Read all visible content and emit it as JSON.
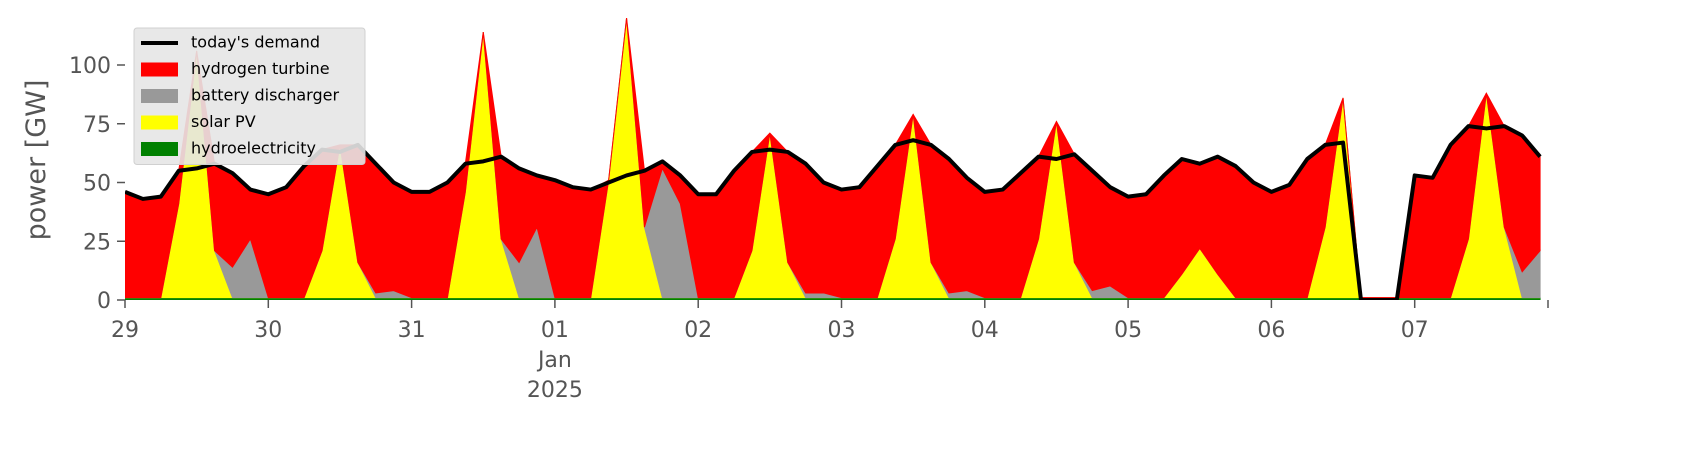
{
  "chart_data": {
    "type": "area",
    "y_label": "power [GW]",
    "ylim": [
      0,
      120
    ],
    "yticks": [
      0,
      25,
      50,
      75,
      100
    ],
    "grid": false,
    "legend": "upper left",
    "categories": [
      "29",
      null,
      null,
      null,
      null,
      null,
      null,
      null,
      "30",
      null,
      null,
      null,
      null,
      null,
      null,
      null,
      "31",
      null,
      null,
      null,
      null,
      null,
      null,
      null,
      "01\nJan\n2025",
      null,
      null,
      null,
      null,
      null,
      null,
      null,
      "02",
      null,
      null,
      null,
      null,
      null,
      null,
      null,
      "03",
      null,
      null,
      null,
      null,
      null,
      null,
      null,
      "04",
      null,
      null,
      null,
      null,
      null,
      null,
      null,
      "05",
      null,
      null,
      null,
      null,
      null,
      null,
      null,
      "06",
      null,
      null,
      null,
      null,
      null,
      null,
      null,
      "07",
      null,
      null,
      null,
      null,
      null,
      null,
      null
    ],
    "series": [
      {
        "name": "today's demand",
        "color": "#000000",
        "type": "line",
        "values": [
          46,
          43,
          44,
          55,
          56,
          58,
          54,
          47,
          45,
          48,
          57,
          64,
          63,
          66,
          58,
          50,
          46,
          46,
          50,
          58,
          59,
          61,
          56,
          53,
          51,
          48,
          47,
          50,
          53,
          55,
          59,
          53,
          45,
          45,
          55,
          63,
          64,
          63,
          58,
          50,
          47,
          48,
          57,
          66,
          68,
          66,
          60,
          52,
          46,
          47,
          54,
          61,
          60,
          62,
          55,
          48,
          44,
          45,
          53,
          60,
          58,
          61,
          57,
          50,
          46,
          49,
          60,
          66,
          67,
          0,
          0,
          0,
          53,
          52,
          66,
          74,
          73,
          74,
          70,
          61
        ]
      },
      {
        "name": "hydrogen turbine",
        "color": "#ff0000",
        "type": "area",
        "values": [
          45,
          42,
          43,
          14,
          0,
          37,
          40,
          21,
          44,
          47,
          56,
          43,
          0,
          50,
          55,
          46,
          45,
          45,
          49,
          12,
          0,
          35,
          40,
          22,
          50,
          47,
          46,
          0,
          0,
          24,
          3,
          12,
          44,
          44,
          54,
          42,
          0,
          47,
          55,
          47,
          46,
          47,
          56,
          40,
          0,
          50,
          57,
          48,
          45,
          46,
          53,
          35,
          0,
          46,
          51,
          42,
          43,
          44,
          52,
          49,
          36,
          50,
          56,
          49,
          45,
          48,
          59,
          35,
          0,
          0,
          0,
          0,
          52,
          51,
          65,
          48,
          0,
          43,
          58,
          40
        ]
      },
      {
        "name": "battery discharger",
        "color": "#999999",
        "type": "area",
        "values": [
          0,
          0,
          0,
          0,
          0,
          0,
          13,
          25,
          0,
          0,
          0,
          0,
          0,
          0,
          2,
          3,
          0,
          0,
          0,
          0,
          0,
          0,
          15,
          30,
          0,
          0,
          0,
          0,
          0,
          0,
          55,
          40,
          0,
          0,
          0,
          0,
          0,
          0,
          2,
          2,
          0,
          0,
          0,
          0,
          0,
          0,
          2,
          3,
          0,
          0,
          0,
          0,
          0,
          0,
          3,
          5,
          0,
          0,
          0,
          0,
          0,
          0,
          0,
          0,
          0,
          0,
          0,
          0,
          0,
          0,
          0,
          0,
          0,
          0,
          0,
          0,
          0,
          0,
          11,
          20
        ]
      },
      {
        "name": "solar PV",
        "color": "#ffff00",
        "type": "area",
        "values": [
          0,
          0,
          0,
          40,
          105,
          20,
          0,
          0,
          0,
          0,
          0,
          20,
          65,
          15,
          0,
          0,
          0,
          0,
          0,
          45,
          113,
          25,
          0,
          0,
          0,
          0,
          0,
          50,
          119,
          30,
          0,
          0,
          0,
          0,
          0,
          20,
          70,
          15,
          0,
          0,
          0,
          0,
          0,
          25,
          78,
          15,
          0,
          0,
          0,
          0,
          0,
          25,
          75,
          15,
          0,
          0,
          0,
          0,
          0,
          10,
          21,
          10,
          0,
          0,
          0,
          0,
          0,
          30,
          85,
          0,
          0,
          0,
          0,
          0,
          0,
          25,
          87,
          30,
          0,
          0
        ]
      },
      {
        "name": "hydroelectricity",
        "color": "#008000",
        "type": "area",
        "values": [
          1,
          1,
          1,
          1,
          1,
          1,
          1,
          1,
          1,
          1,
          1,
          1,
          1,
          1,
          1,
          1,
          1,
          1,
          1,
          1,
          1,
          1,
          1,
          1,
          1,
          1,
          1,
          1,
          1,
          1,
          1,
          1,
          1,
          1,
          1,
          1,
          1,
          1,
          1,
          1,
          1,
          1,
          1,
          1,
          1,
          1,
          1,
          1,
          1,
          1,
          1,
          1,
          1,
          1,
          1,
          1,
          1,
          1,
          1,
          1,
          1,
          1,
          1,
          1,
          1,
          1,
          1,
          1,
          1,
          1,
          1,
          1,
          1,
          1,
          1,
          1,
          1,
          1,
          1,
          1
        ]
      }
    ]
  }
}
